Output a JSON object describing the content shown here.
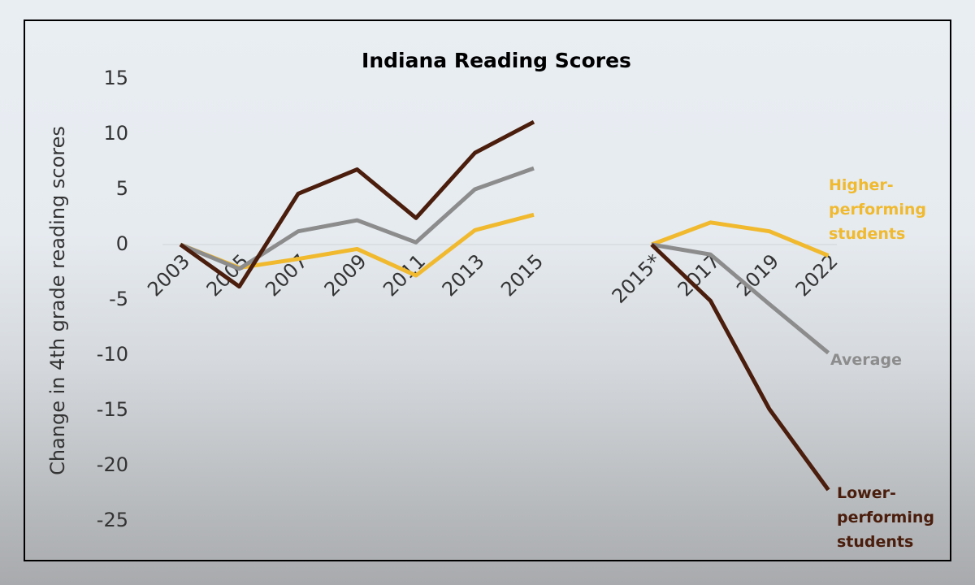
{
  "chart_data": {
    "type": "line",
    "title": "Indiana Reading Scores",
    "y_label": "Change in 4th grade reading scores",
    "categories": [
      "2003",
      "2005",
      "2007",
      "2009",
      "2011",
      "2013",
      "2015",
      null,
      "2015*",
      "2017",
      "2019",
      "2022"
    ],
    "series": [
      {
        "name": "Higher-performing students",
        "color": "#f0b92e",
        "values": [
          0,
          -2.1,
          -1.3,
          -0.4,
          -2.8,
          1.3,
          2.7,
          null,
          0,
          2,
          1.2,
          -1
        ]
      },
      {
        "name": "Average",
        "color": "#8c8c8c",
        "values": [
          0,
          -2.2,
          1.2,
          2.2,
          0.2,
          5,
          6.9,
          null,
          0,
          -0.9,
          -5.4,
          -9.8
        ]
      },
      {
        "name": "Lower-performing students",
        "color": "#4a1d0c",
        "values": [
          0,
          -3.8,
          4.6,
          6.8,
          2.4,
          8.3,
          11.1,
          null,
          0,
          -5.1,
          -14.9,
          -22.2
        ]
      }
    ],
    "ylim": [
      -25,
      15
    ],
    "yticks": [
      15,
      10,
      5,
      0,
      -5,
      -10,
      -15,
      -20,
      -25
    ],
    "grid": false
  }
}
